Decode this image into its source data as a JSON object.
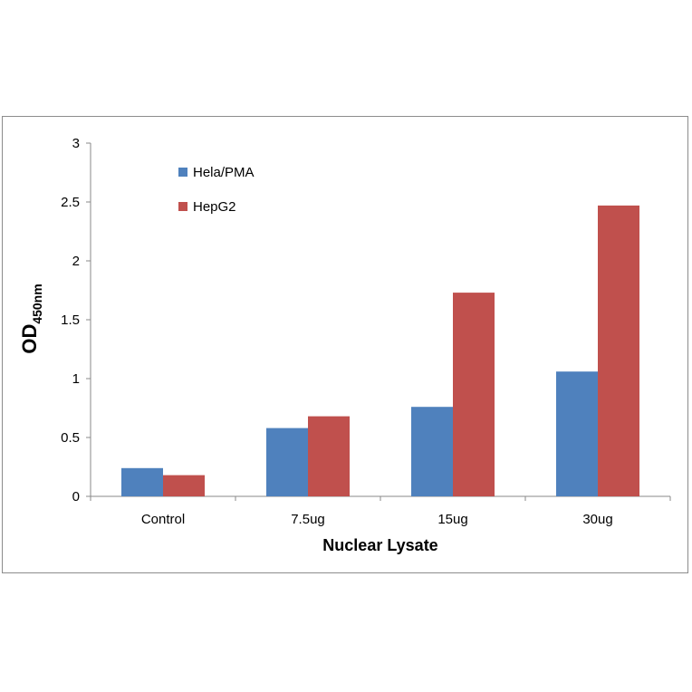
{
  "chart_data": {
    "type": "bar",
    "title": "",
    "xlabel": "Nuclear Lysate",
    "ylabel": "OD",
    "ylabel_subscript": "450nm",
    "categories": [
      "Control",
      "7.5ug",
      "15ug",
      "30ug"
    ],
    "series": [
      {
        "name": "Hela/PMA",
        "color": "#4f81bd",
        "values": [
          0.24,
          0.58,
          0.76,
          1.06
        ]
      },
      {
        "name": "HepG2",
        "color": "#c0504d",
        "values": [
          0.18,
          0.68,
          1.73,
          2.47
        ]
      }
    ],
    "ylim": [
      0,
      3
    ],
    "yticks": [
      "0",
      "0.5",
      "1",
      "1.5",
      "2",
      "2.5",
      "3"
    ],
    "grid": false,
    "legend_position": "upper-left inside plot"
  }
}
